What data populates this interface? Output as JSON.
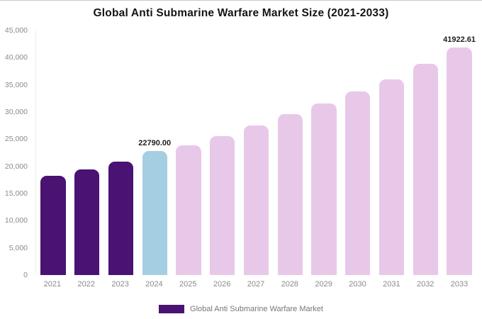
{
  "chart_data": {
    "type": "bar",
    "title": "Global Anti Submarine Warfare Market Size (2021-2033)",
    "categories": [
      "2021",
      "2022",
      "2023",
      "2024",
      "2025",
      "2026",
      "2027",
      "2028",
      "2029",
      "2030",
      "2031",
      "2032",
      "2033"
    ],
    "values": [
      18300,
      19500,
      20900,
      22790,
      23900,
      25600,
      27500,
      29600,
      31600,
      33800,
      36000,
      38900,
      41922.61
    ],
    "value_labels": {
      "2024": "22790.00",
      "2033": "41922.61"
    },
    "bar_colors": [
      "#4a1272",
      "#4a1272",
      "#4a1272",
      "#a6cee3",
      "#e8c8e9",
      "#e8c8e9",
      "#e8c8e9",
      "#e8c8e9",
      "#e8c8e9",
      "#e8c8e9",
      "#e8c8e9",
      "#e8c8e9",
      "#e8c8e9"
    ],
    "colors": {
      "historical": "#4a1272",
      "current_year": "#a6cee3",
      "forecast": "#e8c8e9"
    },
    "xlabel": "",
    "ylabel": "",
    "ylim": [
      0,
      45000
    ],
    "yticks": [
      0,
      5000,
      10000,
      15000,
      20000,
      25000,
      30000,
      35000,
      40000,
      45000
    ],
    "ytick_labels": [
      "0",
      "5,000",
      "10,000",
      "15,000",
      "20,000",
      "25,000",
      "30,000",
      "35,000",
      "40,000",
      "45,000"
    ],
    "grid": false,
    "legend": {
      "label": "Global Anti Submarine Warfare Market",
      "color": "#4a1272",
      "position": "bottom"
    }
  }
}
